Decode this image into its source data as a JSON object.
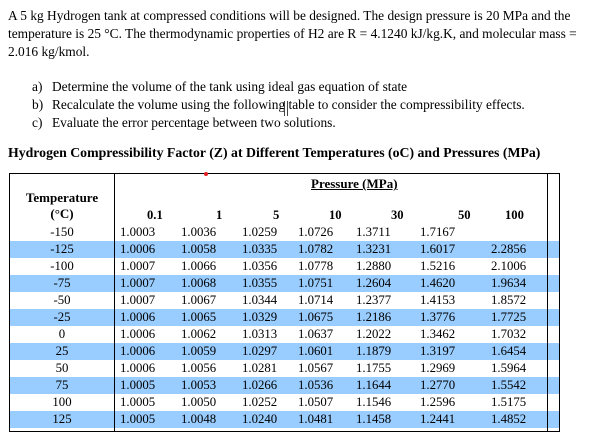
{
  "problem": {
    "intro": "A 5 kg Hydrogen tank at compressed conditions will be designed.  The design pressure is 20 MPa and the temperature is 25 °C. The thermodynamic properties of H2 are R = 4.1240 kJ/kg.K, and molecular mass = 2.016 kg/kmol.",
    "questions": [
      {
        "letter": "a)",
        "text": "Determine the volume of the tank using ideal gas equation of state"
      },
      {
        "letter": "b)",
        "text": "Recalculate the volume using the following table to consider the compressibility effects."
      },
      {
        "letter": "c)",
        "text": "Evaluate the error percentage between two solutions."
      }
    ]
  },
  "table": {
    "title": "Hydrogen Compressibility Factor (Z) at Different Temperatures (oC) and Pressures (MPa)",
    "temperature_label": "Temperature",
    "temperature_unit": "(°C)",
    "pressure_label": "Pressure (MPa)",
    "pressures": [
      "0.1",
      "1",
      "5",
      "10",
      "30",
      "50",
      "100"
    ],
    "rows": [
      {
        "t": "-150",
        "z": [
          "1.0003",
          "1.0036",
          "1.0259",
          "1.0726",
          "1.3711",
          "1.7167",
          ""
        ]
      },
      {
        "t": "-125",
        "z": [
          "1.0006",
          "1.0058",
          "1.0335",
          "1.0782",
          "1.3231",
          "1.6017",
          "2.2856"
        ]
      },
      {
        "t": "-100",
        "z": [
          "1.0007",
          "1.0066",
          "1.0356",
          "1.0778",
          "1.2880",
          "1.5216",
          "2.1006"
        ]
      },
      {
        "t": "-75",
        "z": [
          "1.0007",
          "1.0068",
          "1.0355",
          "1.0751",
          "1.2604",
          "1.4620",
          "1.9634"
        ]
      },
      {
        "t": "-50",
        "z": [
          "1.0007",
          "1.0067",
          "1.0344",
          "1.0714",
          "1.2377",
          "1.4153",
          "1.8572"
        ]
      },
      {
        "t": "-25",
        "z": [
          "1.0006",
          "1.0065",
          "1.0329",
          "1.0675",
          "1.2186",
          "1.3776",
          "1.7725"
        ]
      },
      {
        "t": "0",
        "z": [
          "1.0006",
          "1.0062",
          "1.0313",
          "1.0637",
          "1.2022",
          "1.3462",
          "1.7032"
        ]
      },
      {
        "t": "25",
        "z": [
          "1.0006",
          "1.0059",
          "1.0297",
          "1.0601",
          "1.1879",
          "1.3197",
          "1.6454"
        ]
      },
      {
        "t": "50",
        "z": [
          "1.0006",
          "1.0056",
          "1.0281",
          "1.0567",
          "1.1755",
          "1.2969",
          "1.5964"
        ]
      },
      {
        "t": "75",
        "z": [
          "1.0005",
          "1.0053",
          "1.0266",
          "1.0536",
          "1.1644",
          "1.2770",
          "1.5542"
        ]
      },
      {
        "t": "100",
        "z": [
          "1.0005",
          "1.0050",
          "1.0252",
          "1.0507",
          "1.1546",
          "1.2596",
          "1.5175"
        ]
      },
      {
        "t": "125",
        "z": [
          "1.0005",
          "1.0048",
          "1.0240",
          "1.0481",
          "1.1458",
          "1.2441",
          "1.4852"
        ]
      }
    ],
    "colors": {
      "highlight": "#99ccff",
      "marker": "#e02020"
    }
  }
}
